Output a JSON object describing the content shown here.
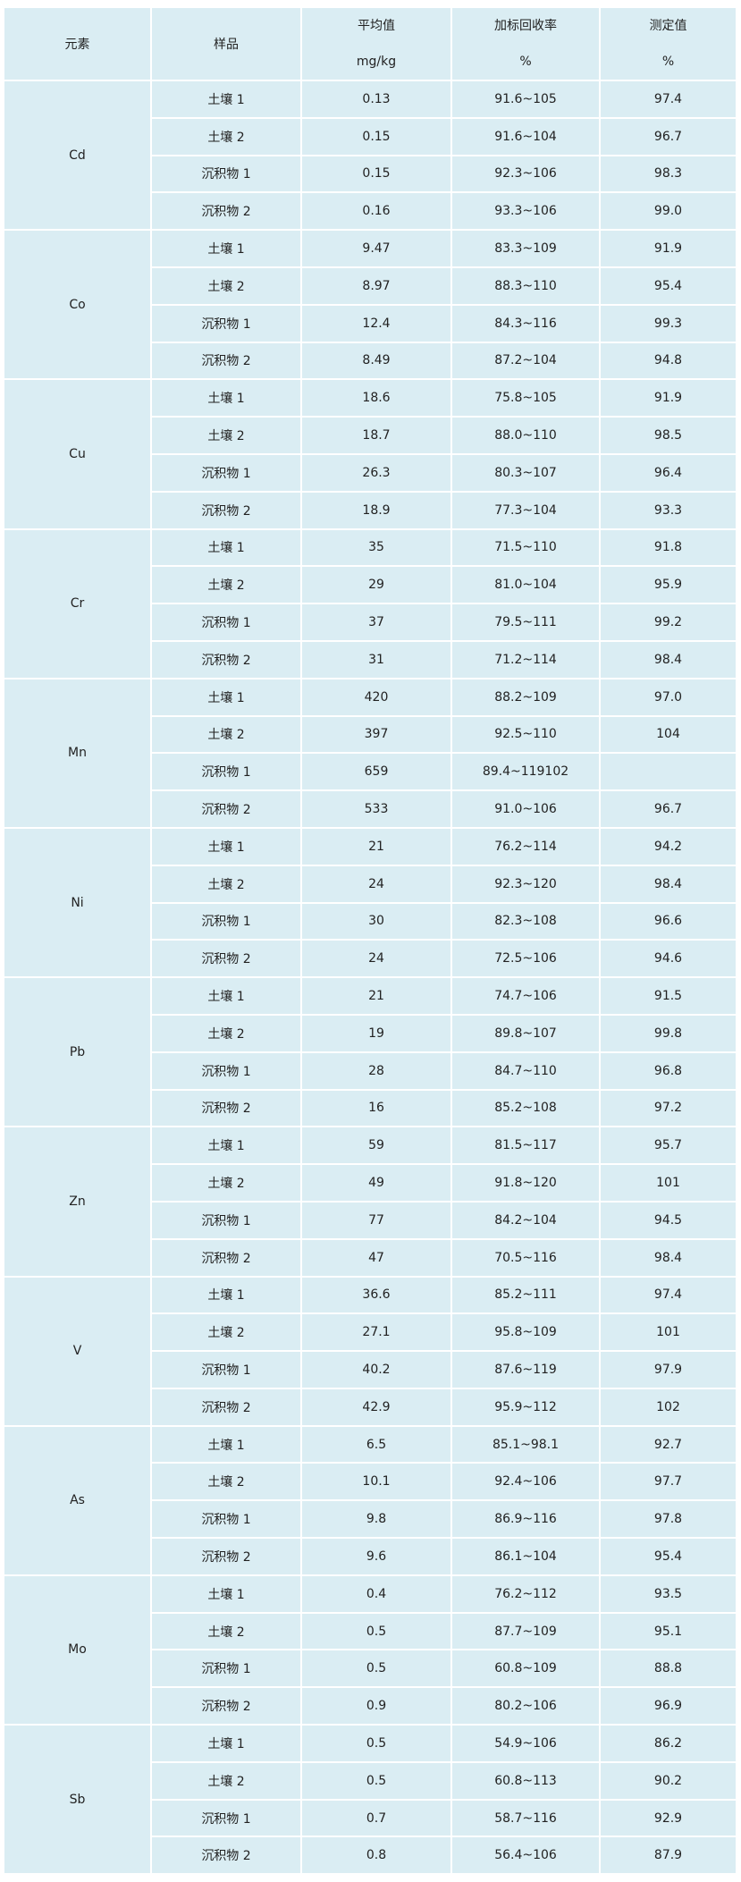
{
  "header": {
    "element": "元素",
    "sample": "样品",
    "mean": "平均值",
    "mean_unit": "mg/kg",
    "recovery": "加标回收率",
    "recovery_unit": "%",
    "measured": "测定值",
    "measured_unit": "%"
  },
  "groups": [
    {
      "element": "Cd",
      "rows": [
        [
          "土壤 1",
          "0.13",
          "91.6~105",
          "97.4"
        ],
        [
          "土壤 2",
          "0.15",
          "91.6~104",
          "96.7"
        ],
        [
          "沉积物 1",
          "0.15",
          "92.3~106",
          "98.3"
        ],
        [
          "沉积物 2",
          "0.16",
          "93.3~106",
          "99.0"
        ]
      ]
    },
    {
      "element": "Co",
      "rows": [
        [
          "土壤 1",
          "9.47",
          "83.3~109",
          "91.9"
        ],
        [
          "土壤 2",
          "8.97",
          "88.3~110",
          "95.4"
        ],
        [
          "沉积物 1",
          "12.4",
          "84.3~116",
          "99.3"
        ],
        [
          "沉积物 2",
          "8.49",
          "87.2~104",
          "94.8"
        ]
      ]
    },
    {
      "element": "Cu",
      "rows": [
        [
          "土壤 1",
          "18.6",
          "75.8~105",
          "91.9"
        ],
        [
          "土壤 2",
          "18.7",
          "88.0~110",
          "98.5"
        ],
        [
          "沉积物 1",
          "26.3",
          "80.3~107",
          "96.4"
        ],
        [
          "沉积物 2",
          "18.9",
          "77.3~104",
          "93.3"
        ]
      ]
    },
    {
      "element": "Cr",
      "rows": [
        [
          "土壤 1",
          "35",
          "71.5~110",
          "91.8"
        ],
        [
          "土壤 2",
          "29",
          "81.0~104",
          "95.9"
        ],
        [
          "沉积物 1",
          "37",
          "79.5~111",
          "99.2"
        ],
        [
          "沉积物 2",
          "31",
          "71.2~114",
          "98.4"
        ]
      ]
    },
    {
      "element": "Mn",
      "rows": [
        [
          "土壤 1",
          "420",
          "88.2~109",
          "97.0"
        ],
        [
          "土壤 2",
          "397",
          "92.5~110",
          "104"
        ],
        [
          "沉积物 1",
          "659",
          "89.4~119102",
          ""
        ],
        [
          "沉积物 2",
          "533",
          "91.0~106",
          "96.7"
        ]
      ]
    },
    {
      "element": "Ni",
      "rows": [
        [
          "土壤 1",
          "21",
          "76.2~114",
          "94.2"
        ],
        [
          "土壤 2",
          "24",
          "92.3~120",
          "98.4"
        ],
        [
          "沉积物 1",
          "30",
          "82.3~108",
          "96.6"
        ],
        [
          "沉积物 2",
          "24",
          "72.5~106",
          "94.6"
        ]
      ]
    },
    {
      "element": "Pb",
      "rows": [
        [
          "土壤 1",
          "21",
          "74.7~106",
          "91.5"
        ],
        [
          "土壤 2",
          "19",
          "89.8~107",
          "99.8"
        ],
        [
          "沉积物 1",
          "28",
          "84.7~110",
          "96.8"
        ],
        [
          "沉积物 2",
          "16",
          "85.2~108",
          "97.2"
        ]
      ]
    },
    {
      "element": "Zn",
      "rows": [
        [
          "土壤 1",
          "59",
          "81.5~117",
          "95.7"
        ],
        [
          "土壤 2",
          "49",
          "91.8~120",
          "101"
        ],
        [
          "沉积物 1",
          "77",
          "84.2~104",
          "94.5"
        ],
        [
          "沉积物 2",
          "47",
          "70.5~116",
          "98.4"
        ]
      ]
    },
    {
      "element": "V",
      "rows": [
        [
          "土壤 1",
          "36.6",
          "85.2~111",
          "97.4"
        ],
        [
          "土壤 2",
          "27.1",
          "95.8~109",
          "101"
        ],
        [
          "沉积物 1",
          "40.2",
          "87.6~119",
          "97.9"
        ],
        [
          "沉积物 2",
          "42.9",
          "95.9~112",
          "102"
        ]
      ]
    },
    {
      "element": "As",
      "rows": [
        [
          "土壤 1",
          "6.5",
          "85.1~98.1",
          "92.7"
        ],
        [
          "土壤 2",
          "10.1",
          "92.4~106",
          "97.7"
        ],
        [
          "沉积物 1",
          "9.8",
          "86.9~116",
          "97.8"
        ],
        [
          "沉积物 2",
          "9.6",
          "86.1~104",
          "95.4"
        ]
      ]
    },
    {
      "element": "Mo",
      "rows": [
        [
          "土壤 1",
          "0.4",
          "76.2~112",
          "93.5"
        ],
        [
          "土壤 2",
          "0.5",
          "87.7~109",
          "95.1"
        ],
        [
          "沉积物 1",
          "0.5",
          "60.8~109",
          "88.8"
        ],
        [
          "沉积物 2",
          "0.9",
          "80.2~106",
          "96.9"
        ]
      ]
    },
    {
      "element": "Sb",
      "rows": [
        [
          "土壤 1",
          "0.5",
          "54.9~106",
          "86.2"
        ],
        [
          "土壤 2",
          "0.5",
          "60.8~113",
          "90.2"
        ],
        [
          "沉积物 1",
          "0.7",
          "58.7~116",
          "92.9"
        ],
        [
          "沉积物 2",
          "0.8",
          "56.4~106",
          "87.9"
        ]
      ]
    }
  ]
}
